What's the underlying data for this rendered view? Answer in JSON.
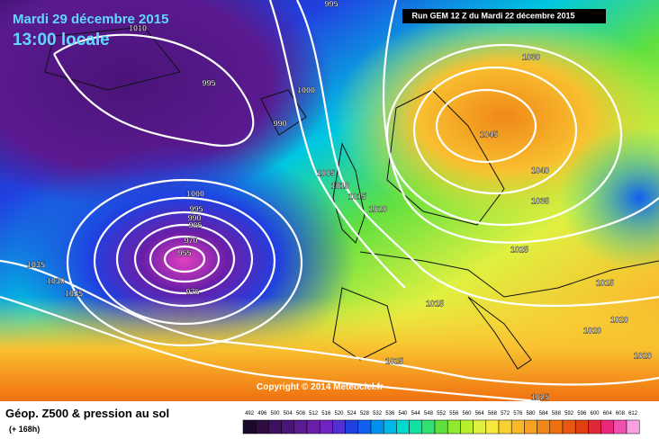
{
  "header": {
    "date": "Mardi 29 décembre 2015",
    "time": "13:00 locale",
    "run": "Run GEM 12 Z du Mardi 22 décembre 2015"
  },
  "copyright": "Copyright © 2014 Meteociel.fr",
  "footer": {
    "title": "Géop. Z500 & pression au sol",
    "subtitle": "(+ 168h)"
  },
  "scale": {
    "values": [
      492,
      496,
      500,
      504,
      508,
      512,
      516,
      520,
      524,
      528,
      532,
      536,
      540,
      544,
      548,
      552,
      556,
      560,
      564,
      568,
      572,
      576,
      580,
      584,
      588,
      592,
      596,
      600,
      604,
      608,
      612
    ],
    "colors": [
      "#1a0a2a",
      "#2e0c40",
      "#3e1060",
      "#4a1478",
      "#5a1a90",
      "#6a1ea8",
      "#7024c0",
      "#5030d0",
      "#2040e0",
      "#1060f0",
      "#0090f0",
      "#00b8e8",
      "#00d8d0",
      "#10e0a0",
      "#30e070",
      "#60e040",
      "#90e830",
      "#b8f030",
      "#e0f040",
      "#f8e840",
      "#f8d030",
      "#f8b828",
      "#f8a020",
      "#f08818",
      "#f07010",
      "#e85810",
      "#e04010",
      "#e02838",
      "#e82878",
      "#f050b0",
      "#f8a0e0"
    ]
  },
  "isobar_labels": [
    "995",
    "1010",
    "995",
    "1000",
    "990",
    "1030",
    "1045",
    "1040",
    "1005",
    "1010",
    "1015",
    "1020",
    "1000",
    "995",
    "990",
    "985",
    "970",
    "955",
    "1035",
    "1025",
    "1035",
    "1030",
    "1025",
    "975",
    "1015",
    "1015",
    "1020",
    "1020",
    "1025",
    "1020",
    "1025"
  ]
}
